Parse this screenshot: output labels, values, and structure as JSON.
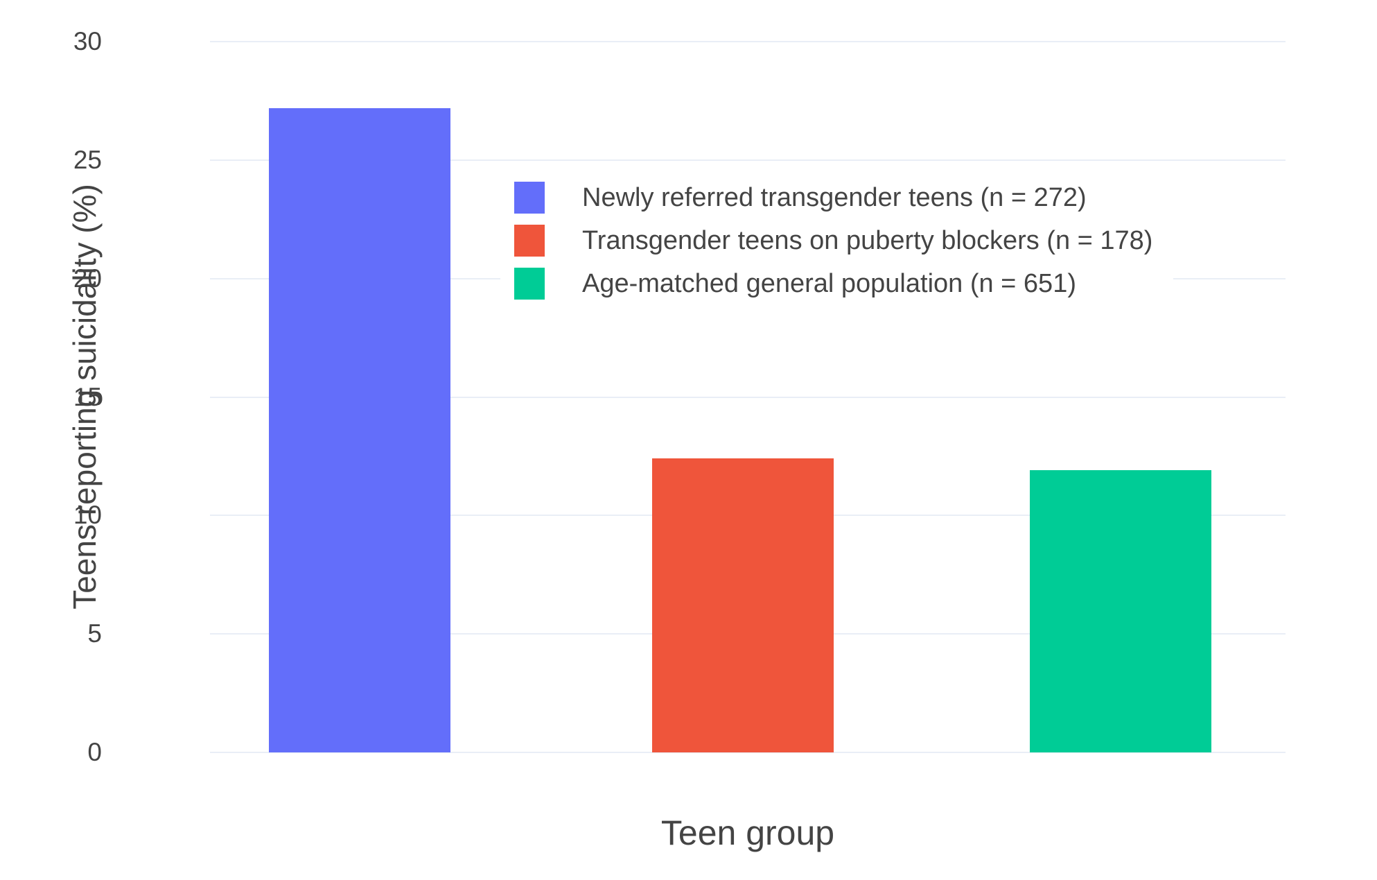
{
  "chart_data": {
    "type": "bar",
    "title": "",
    "xlabel": "Teen group",
    "ylabel": "Teens reporting suicidality (%)",
    "ylim": [
      0,
      30
    ],
    "yticks": [
      0,
      5,
      10,
      15,
      20,
      25,
      30
    ],
    "grid": true,
    "legend_position": "inside-top-center",
    "series": [
      {
        "name": "Newly referred transgender teens (n = 272)",
        "value": 27.2,
        "color": "#636EFA"
      },
      {
        "name": "Transgender teens on puberty blockers (n = 178)",
        "value": 12.4,
        "color": "#EF553B"
      },
      {
        "name": "Age-matched general population (n = 651)",
        "value": 11.9,
        "color": "#00CC96"
      }
    ]
  },
  "colors": {
    "background": "#ffffff",
    "gridline": "#e9eef6",
    "text": "#444444"
  }
}
